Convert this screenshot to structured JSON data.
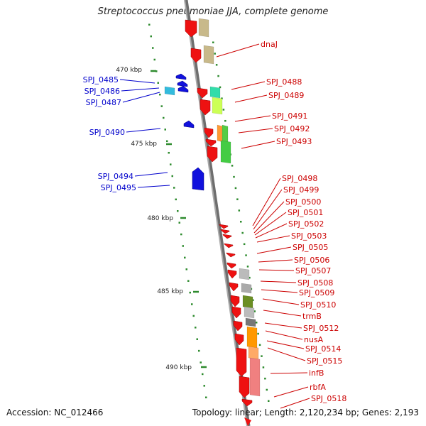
{
  "title": "Streptococcus pneumoniae JJA, complete genome",
  "accession_text": "Accession: NC_012466",
  "summary_text": "Topology: linear; Length: 2,120,234 bp; Genes: 2,193",
  "colors": {
    "backbone": "#8a8a8a",
    "tick": "#2e8b2e",
    "label_forward": "#cc0000",
    "label_reverse": "#0000cc",
    "gene_forward": "#ee1111",
    "gene_reverse": "#1111dd"
  },
  "scale_labels": [
    {
      "text": "470 kbp"
    },
    {
      "text": "475 kbp"
    },
    {
      "text": "480 kbp"
    },
    {
      "text": "485 kbp"
    },
    {
      "text": "490 kbp"
    }
  ],
  "genes_reverse": [
    {
      "label": "SPJ_0485"
    },
    {
      "label": "SPJ_0486"
    },
    {
      "label": "SPJ_0487"
    },
    {
      "label": "SPJ_0490"
    },
    {
      "label": "SPJ_0494"
    },
    {
      "label": "SPJ_0495"
    }
  ],
  "genes_forward": [
    {
      "label": "dnaJ"
    },
    {
      "label": "SPJ_0488"
    },
    {
      "label": "SPJ_0489"
    },
    {
      "label": "SPJ_0491"
    },
    {
      "label": "SPJ_0492"
    },
    {
      "label": "SPJ_0493"
    },
    {
      "label": "SPJ_0498"
    },
    {
      "label": "SPJ_0499"
    },
    {
      "label": "SPJ_0500"
    },
    {
      "label": "SPJ_0501"
    },
    {
      "label": "SPJ_0502"
    },
    {
      "label": "SPJ_0503"
    },
    {
      "label": "SPJ_0505"
    },
    {
      "label": "SPJ_0506"
    },
    {
      "label": "SPJ_0507"
    },
    {
      "label": "SPJ_0508"
    },
    {
      "label": "SPJ_0509"
    },
    {
      "label": "SPJ_0510"
    },
    {
      "label": "trmB"
    },
    {
      "label": "SPJ_0512"
    },
    {
      "label": "nusA"
    },
    {
      "label": "SPJ_0514"
    },
    {
      "label": "SPJ_0515"
    },
    {
      "label": "infB"
    },
    {
      "label": "rbfA"
    },
    {
      "label": "SPJ_0518"
    }
  ]
}
